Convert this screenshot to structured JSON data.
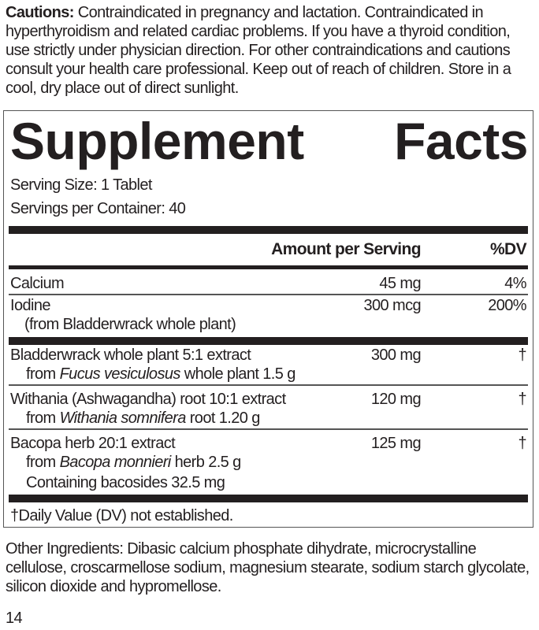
{
  "cautions": {
    "label": "Cautions:",
    "text": " Contraindicated in pregnancy and lactation. Contraindicated in hyperthyroidism and related cardiac problems. If you have a thyroid condition, use strictly under physician direction. For other contraindications and cautions consult your health care professional. Keep out of reach of children. Store in a cool, dry place out of direct sunlight."
  },
  "facts": {
    "title_word1": "Supplement",
    "title_word2": "Facts",
    "serving_size": "Serving Size: 1 Tablet",
    "servings_per_container": "Servings per Container: 40",
    "header_amount": "Amount per Serving",
    "header_dv": "%DV",
    "rows": [
      {
        "name": "Calcium",
        "amount": "45 mg",
        "dv": "4%"
      },
      {
        "name": "Iodine",
        "sub": "(from Bladderwrack whole plant)",
        "amount": "300 mcg",
        "dv": "200%"
      },
      {
        "name": "Bladderwrack whole plant 5:1 extract",
        "sub_pre": "from ",
        "sub_italic": "Fucus vesiculosus",
        "sub_post": " whole plant 1.5 g",
        "amount": "300 mg",
        "dv": "†"
      },
      {
        "name": "Withania (Ashwagandha) root 10:1 extract",
        "sub_pre": "from ",
        "sub_italic": "Withania somnifera",
        "sub_post": " root 1.20 g",
        "amount": "120 mg",
        "dv": "†"
      },
      {
        "name": "Bacopa herb 20:1 extract",
        "sub_pre": "from ",
        "sub_italic": "Bacopa monnieri",
        "sub_post": " herb 2.5 g",
        "sub2": "Containing bacosides 32.5 mg",
        "amount": "125 mg",
        "dv": "†"
      }
    ],
    "footnote": "†Daily Value (DV) not established."
  },
  "other_ingredients": "Other Ingredients: Dibasic calcium phosphate dihydrate, microcrystalline cellulose, croscarmellose sodium, magnesium stearate, sodium starch glycolate, silicon dioxide and hypromellose.",
  "page_number": "14"
}
